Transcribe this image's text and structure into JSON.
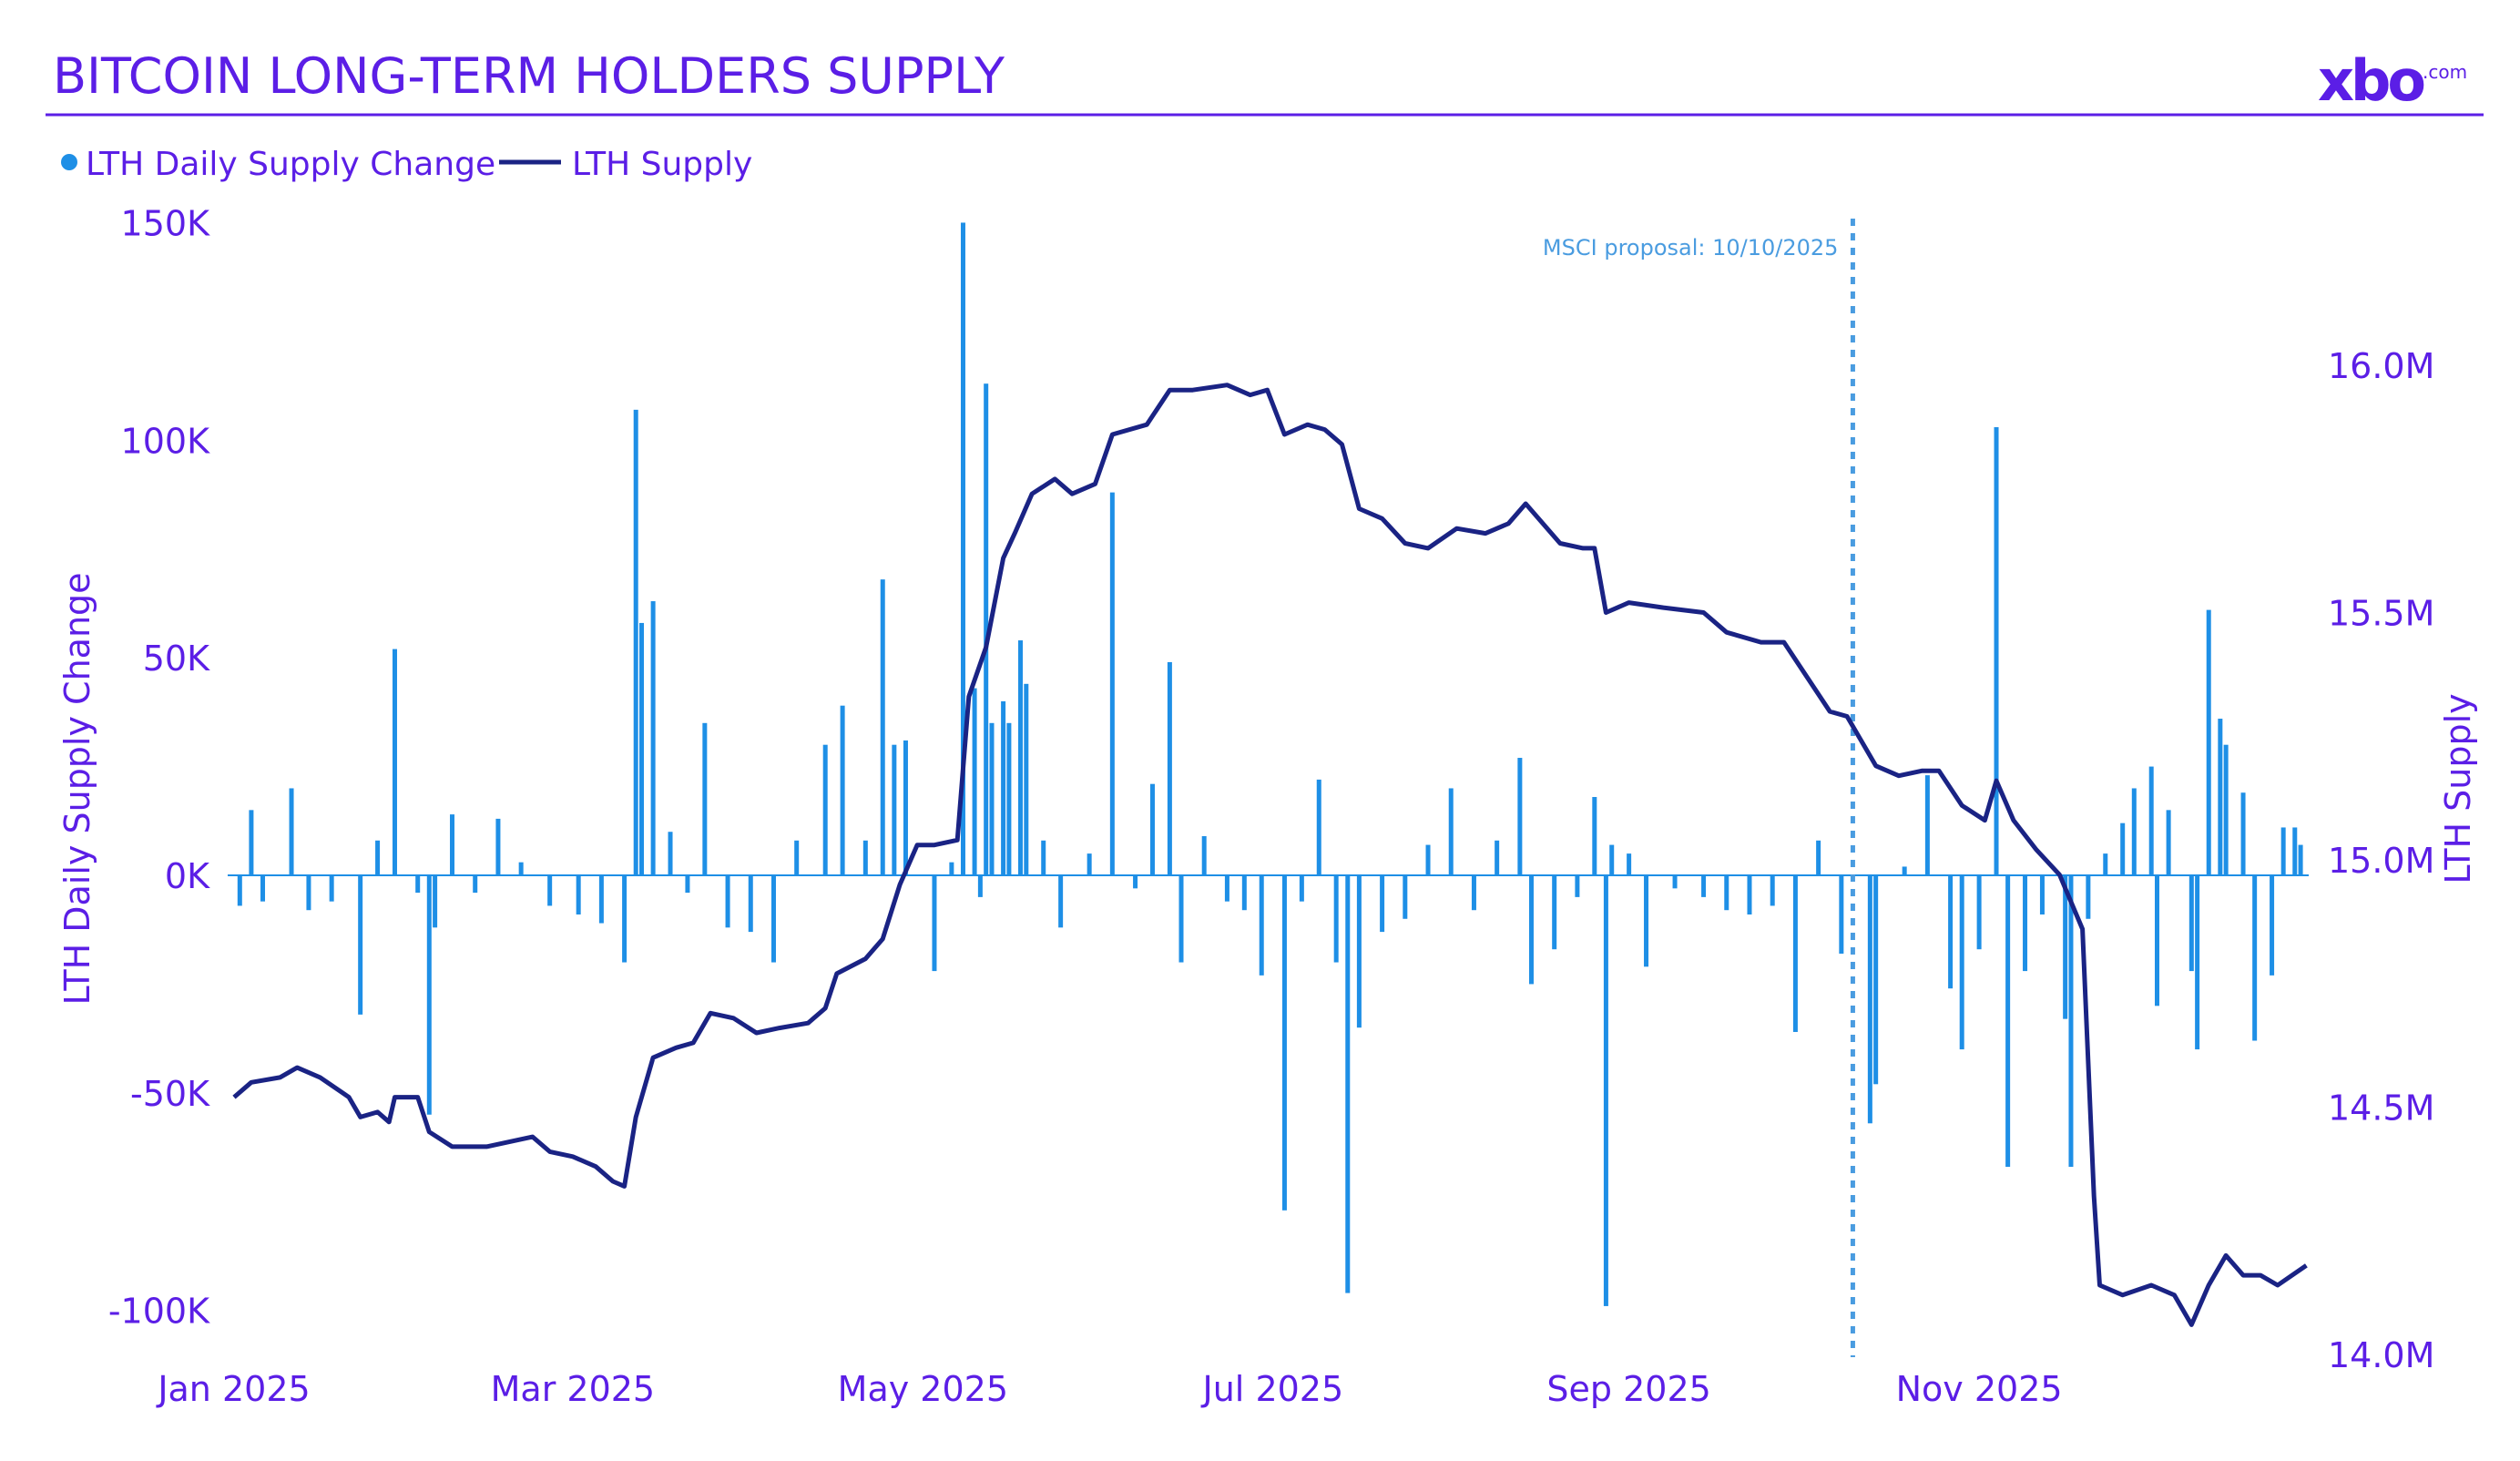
{
  "header": {
    "title": "BITCOIN LONG-TERM HOLDERS SUPPLY",
    "logo_text": "xbo",
    "logo_suffix": ".com"
  },
  "colors": {
    "title": "#5b1ee6",
    "bars": "#1e8fe6",
    "line": "#1a2384",
    "annotation": "#4a9ce0"
  },
  "chart_data": {
    "type": "bar+line",
    "title": "BITCOIN LONG-TERM HOLDERS SUPPLY",
    "legend": {
      "placement": "top-left",
      "entries": [
        "LTH Daily Supply Change",
        "LTH Supply"
      ]
    },
    "x_ticks": [
      [
        "2025-01-01",
        "Jan 2025"
      ],
      [
        "2025-03-01",
        "Mar 2025"
      ],
      [
        "2025-05-01",
        "May 2025"
      ],
      [
        "2025-07-01",
        "Jul 2025"
      ],
      [
        "2025-09-01",
        "Sep 2025"
      ],
      [
        "2025-11-01",
        "Nov 2025"
      ]
    ],
    "xlim": [
      "2025-01-01",
      "2025-12-31"
    ],
    "y_left": {
      "label": "LTH Daily Supply Change",
      "ylim": [
        -100000,
        150000
      ],
      "ticks": [
        [
          150000,
          "150K"
        ],
        [
          100000,
          "100K"
        ],
        [
          50000,
          "50K"
        ],
        [
          0,
          "0K"
        ],
        [
          -50000,
          "-50K"
        ],
        [
          -100000,
          "-100K"
        ]
      ]
    },
    "y_right": {
      "label": "LTH Supply",
      "ylim": [
        14000000,
        16300000
      ],
      "ticks": [
        [
          16000000,
          "16.0M"
        ],
        [
          15500000,
          "15.5M"
        ],
        [
          15000000,
          "15.0M"
        ],
        [
          14500000,
          "14.5M"
        ],
        [
          14000000,
          "14.0M"
        ]
      ]
    },
    "annotation": {
      "date": "2025-10-10",
      "label": "MSCI proposal: 10/10/2025",
      "style": "dotted-vertical-line"
    },
    "grid": false,
    "series": [
      {
        "name": "LTH Daily Supply Change",
        "type": "bar",
        "axis": "left",
        "points": [
          [
            "2025-01-02",
            -7000
          ],
          [
            "2025-01-04",
            15000
          ],
          [
            "2025-01-06",
            -6000
          ],
          [
            "2025-01-11",
            20000
          ],
          [
            "2025-01-14",
            -8000
          ],
          [
            "2025-01-18",
            -6000
          ],
          [
            "2025-01-23",
            -32000
          ],
          [
            "2025-01-26",
            8000
          ],
          [
            "2025-01-29",
            52000
          ],
          [
            "2025-02-02",
            -4000
          ],
          [
            "2025-02-04",
            -55000
          ],
          [
            "2025-02-05",
            -12000
          ],
          [
            "2025-02-08",
            14000
          ],
          [
            "2025-02-12",
            -4000
          ],
          [
            "2025-02-16",
            13000
          ],
          [
            "2025-02-20",
            3000
          ],
          [
            "2025-02-25",
            -7000
          ],
          [
            "2025-03-02",
            -9000
          ],
          [
            "2025-03-06",
            -11000
          ],
          [
            "2025-03-10",
            -20000
          ],
          [
            "2025-03-12",
            107000
          ],
          [
            "2025-03-13",
            58000
          ],
          [
            "2025-03-15",
            63000
          ],
          [
            "2025-03-18",
            10000
          ],
          [
            "2025-03-21",
            -4000
          ],
          [
            "2025-03-24",
            35000
          ],
          [
            "2025-03-28",
            -12000
          ],
          [
            "2025-04-01",
            -13000
          ],
          [
            "2025-04-05",
            -20000
          ],
          [
            "2025-04-09",
            8000
          ],
          [
            "2025-04-14",
            30000
          ],
          [
            "2025-04-17",
            39000
          ],
          [
            "2025-04-21",
            8000
          ],
          [
            "2025-04-24",
            68000
          ],
          [
            "2025-04-26",
            30000
          ],
          [
            "2025-04-28",
            31000
          ],
          [
            "2025-05-03",
            -22000
          ],
          [
            "2025-05-06",
            3000
          ],
          [
            "2025-05-08",
            150000
          ],
          [
            "2025-05-10",
            43000
          ],
          [
            "2025-05-11",
            -5000
          ],
          [
            "2025-05-12",
            113000
          ],
          [
            "2025-05-13",
            35000
          ],
          [
            "2025-05-15",
            40000
          ],
          [
            "2025-05-16",
            35000
          ],
          [
            "2025-05-18",
            54000
          ],
          [
            "2025-05-19",
            44000
          ],
          [
            "2025-05-22",
            8000
          ],
          [
            "2025-05-25",
            -12000
          ],
          [
            "2025-05-30",
            5000
          ],
          [
            "2025-06-03",
            88000
          ],
          [
            "2025-06-07",
            -3000
          ],
          [
            "2025-06-10",
            21000
          ],
          [
            "2025-06-13",
            49000
          ],
          [
            "2025-06-15",
            -20000
          ],
          [
            "2025-06-19",
            9000
          ],
          [
            "2025-06-23",
            -6000
          ],
          [
            "2025-06-26",
            -8000
          ],
          [
            "2025-06-29",
            -23000
          ],
          [
            "2025-07-03",
            -77000
          ],
          [
            "2025-07-06",
            -6000
          ],
          [
            "2025-07-09",
            22000
          ],
          [
            "2025-07-12",
            -20000
          ],
          [
            "2025-07-14",
            -96000
          ],
          [
            "2025-07-16",
            -35000
          ],
          [
            "2025-07-20",
            -13000
          ],
          [
            "2025-07-24",
            -10000
          ],
          [
            "2025-07-28",
            7000
          ],
          [
            "2025-08-01",
            20000
          ],
          [
            "2025-08-05",
            -8000
          ],
          [
            "2025-08-09",
            8000
          ],
          [
            "2025-08-13",
            27000
          ],
          [
            "2025-08-15",
            -25000
          ],
          [
            "2025-08-19",
            -17000
          ],
          [
            "2025-08-23",
            -5000
          ],
          [
            "2025-08-26",
            18000
          ],
          [
            "2025-08-28",
            -99000
          ],
          [
            "2025-08-29",
            7000
          ],
          [
            "2025-09-01",
            5000
          ],
          [
            "2025-09-04",
            -21000
          ],
          [
            "2025-09-09",
            -3000
          ],
          [
            "2025-09-14",
            -5000
          ],
          [
            "2025-09-18",
            -8000
          ],
          [
            "2025-09-22",
            -9000
          ],
          [
            "2025-09-26",
            -7000
          ],
          [
            "2025-09-30",
            -36000
          ],
          [
            "2025-10-04",
            8000
          ],
          [
            "2025-10-08",
            -18000
          ],
          [
            "2025-10-13",
            -57000
          ],
          [
            "2025-10-14",
            -48000
          ],
          [
            "2025-10-19",
            2000
          ],
          [
            "2025-10-23",
            23000
          ],
          [
            "2025-10-27",
            -26000
          ],
          [
            "2025-10-29",
            -40000
          ],
          [
            "2025-11-01",
            -17000
          ],
          [
            "2025-11-04",
            103000
          ],
          [
            "2025-11-06",
            -67000
          ],
          [
            "2025-11-09",
            -22000
          ],
          [
            "2025-11-12",
            -9000
          ],
          [
            "2025-11-16",
            -33000
          ],
          [
            "2025-11-17",
            -67000
          ],
          [
            "2025-11-20",
            -10000
          ],
          [
            "2025-11-23",
            5000
          ],
          [
            "2025-11-26",
            12000
          ],
          [
            "2025-11-28",
            20000
          ],
          [
            "2025-12-01",
            25000
          ],
          [
            "2025-12-02",
            -30000
          ],
          [
            "2025-12-04",
            15000
          ],
          [
            "2025-12-08",
            -22000
          ],
          [
            "2025-12-09",
            -40000
          ],
          [
            "2025-12-11",
            61000
          ],
          [
            "2025-12-13",
            36000
          ],
          [
            "2025-12-14",
            30000
          ],
          [
            "2025-12-17",
            19000
          ],
          [
            "2025-12-19",
            -38000
          ],
          [
            "2025-12-22",
            -23000
          ],
          [
            "2025-12-24",
            11000
          ],
          [
            "2025-12-26",
            11000
          ],
          [
            "2025-12-27",
            7000
          ]
        ]
      },
      {
        "name": "LTH Supply",
        "type": "line",
        "axis": "right",
        "points": [
          [
            "2025-01-01",
            14520000
          ],
          [
            "2025-01-04",
            14550000
          ],
          [
            "2025-01-09",
            14560000
          ],
          [
            "2025-01-12",
            14580000
          ],
          [
            "2025-01-16",
            14560000
          ],
          [
            "2025-01-21",
            14520000
          ],
          [
            "2025-01-23",
            14480000
          ],
          [
            "2025-01-26",
            14490000
          ],
          [
            "2025-01-28",
            14470000
          ],
          [
            "2025-01-29",
            14520000
          ],
          [
            "2025-02-02",
            14520000
          ],
          [
            "2025-02-04",
            14450000
          ],
          [
            "2025-02-08",
            14420000
          ],
          [
            "2025-02-14",
            14420000
          ],
          [
            "2025-02-22",
            14440000
          ],
          [
            "2025-02-25",
            14410000
          ],
          [
            "2025-03-01",
            14400000
          ],
          [
            "2025-03-05",
            14380000
          ],
          [
            "2025-03-08",
            14350000
          ],
          [
            "2025-03-10",
            14340000
          ],
          [
            "2025-03-12",
            14480000
          ],
          [
            "2025-03-15",
            14600000
          ],
          [
            "2025-03-19",
            14620000
          ],
          [
            "2025-03-22",
            14630000
          ],
          [
            "2025-03-25",
            14690000
          ],
          [
            "2025-03-29",
            14680000
          ],
          [
            "2025-04-02",
            14650000
          ],
          [
            "2025-04-06",
            14660000
          ],
          [
            "2025-04-11",
            14670000
          ],
          [
            "2025-04-14",
            14700000
          ],
          [
            "2025-04-16",
            14770000
          ],
          [
            "2025-04-21",
            14800000
          ],
          [
            "2025-04-24",
            14840000
          ],
          [
            "2025-04-27",
            14950000
          ],
          [
            "2025-04-30",
            15030000
          ],
          [
            "2025-05-03",
            15030000
          ],
          [
            "2025-05-07",
            15040000
          ],
          [
            "2025-05-09",
            15330000
          ],
          [
            "2025-05-12",
            15430000
          ],
          [
            "2025-05-15",
            15610000
          ],
          [
            "2025-05-17",
            15660000
          ],
          [
            "2025-05-20",
            15740000
          ],
          [
            "2025-05-24",
            15770000
          ],
          [
            "2025-05-27",
            15740000
          ],
          [
            "2025-05-31",
            15760000
          ],
          [
            "2025-06-03",
            15860000
          ],
          [
            "2025-06-09",
            15880000
          ],
          [
            "2025-06-13",
            15950000
          ],
          [
            "2025-06-17",
            15950000
          ],
          [
            "2025-06-23",
            15960000
          ],
          [
            "2025-06-27",
            15940000
          ],
          [
            "2025-06-30",
            15950000
          ],
          [
            "2025-07-03",
            15860000
          ],
          [
            "2025-07-07",
            15880000
          ],
          [
            "2025-07-10",
            15870000
          ],
          [
            "2025-07-13",
            15840000
          ],
          [
            "2025-07-16",
            15710000
          ],
          [
            "2025-07-20",
            15690000
          ],
          [
            "2025-07-24",
            15640000
          ],
          [
            "2025-07-28",
            15630000
          ],
          [
            "2025-08-02",
            15670000
          ],
          [
            "2025-08-07",
            15660000
          ],
          [
            "2025-08-11",
            15680000
          ],
          [
            "2025-08-14",
            15720000
          ],
          [
            "2025-08-20",
            15640000
          ],
          [
            "2025-08-24",
            15630000
          ],
          [
            "2025-08-26",
            15630000
          ],
          [
            "2025-08-28",
            15500000
          ],
          [
            "2025-09-01",
            15520000
          ],
          [
            "2025-09-07",
            15510000
          ],
          [
            "2025-09-14",
            15500000
          ],
          [
            "2025-09-18",
            15460000
          ],
          [
            "2025-09-24",
            15440000
          ],
          [
            "2025-09-28",
            15440000
          ],
          [
            "2025-10-02",
            15370000
          ],
          [
            "2025-10-06",
            15300000
          ],
          [
            "2025-10-09",
            15290000
          ],
          [
            "2025-10-14",
            15190000
          ],
          [
            "2025-10-18",
            15170000
          ],
          [
            "2025-10-22",
            15180000
          ],
          [
            "2025-10-25",
            15180000
          ],
          [
            "2025-10-29",
            15110000
          ],
          [
            "2025-11-02",
            15080000
          ],
          [
            "2025-11-04",
            15160000
          ],
          [
            "2025-11-07",
            15080000
          ],
          [
            "2025-11-11",
            15020000
          ],
          [
            "2025-11-15",
            14970000
          ],
          [
            "2025-11-19",
            14860000
          ],
          [
            "2025-11-21",
            14320000
          ],
          [
            "2025-11-22",
            14140000
          ],
          [
            "2025-11-26",
            14120000
          ],
          [
            "2025-12-01",
            14140000
          ],
          [
            "2025-12-05",
            14120000
          ],
          [
            "2025-12-08",
            14060000
          ],
          [
            "2025-12-11",
            14140000
          ],
          [
            "2025-12-14",
            14200000
          ],
          [
            "2025-12-17",
            14160000
          ],
          [
            "2025-12-20",
            14160000
          ],
          [
            "2025-12-23",
            14140000
          ],
          [
            "2025-12-28",
            14180000
          ]
        ]
      }
    ]
  }
}
